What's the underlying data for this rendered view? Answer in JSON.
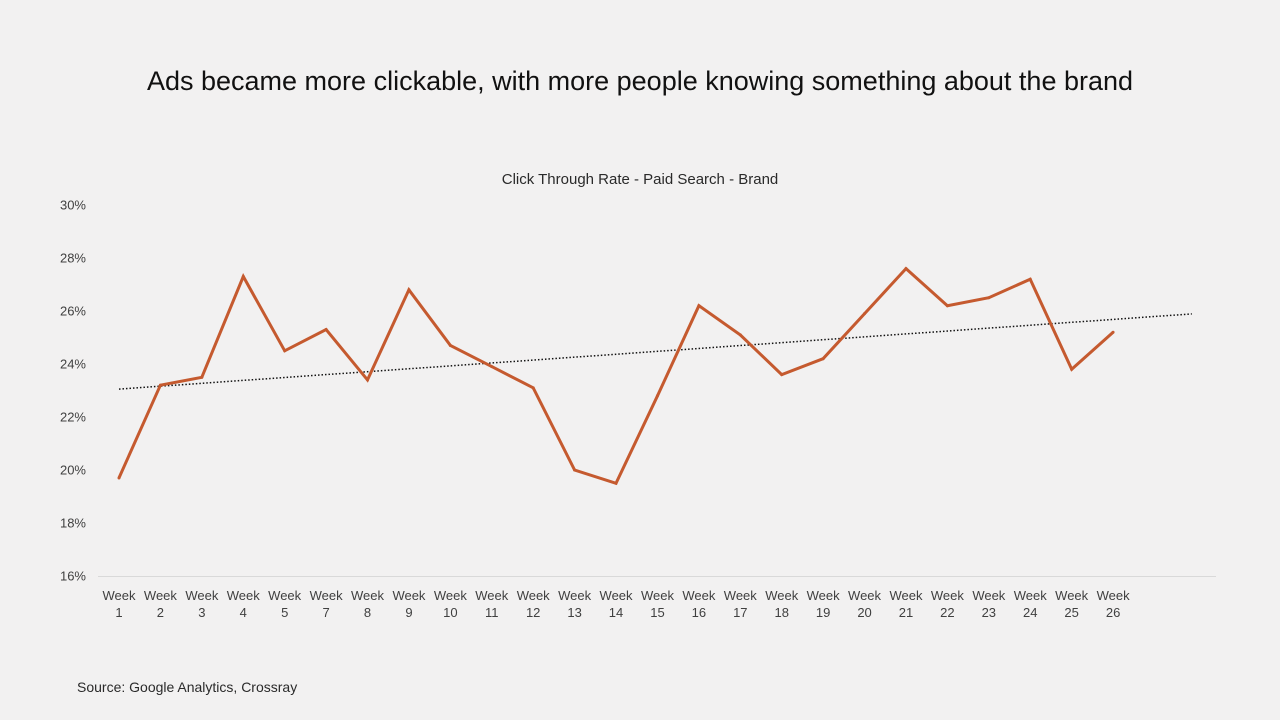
{
  "headline": "Ads became more clickable, with more people knowing something about the brand",
  "source": "Source: Google Analytics, Crossray",
  "colors": {
    "background": "#f2f1f1",
    "series_line": "#c55a2f",
    "trendline": "#111111",
    "axis": "#d9d9d9"
  },
  "chart_data": {
    "type": "line",
    "title": "Click Through Rate - Paid Search - Brand",
    "xlabel": "",
    "ylabel": "",
    "ylim": [
      0.16,
      0.3
    ],
    "y_ticks": [
      0.16,
      0.18,
      0.2,
      0.22,
      0.24,
      0.26,
      0.28,
      0.3
    ],
    "y_tick_labels": [
      "16%",
      "18%",
      "20%",
      "22%",
      "24%",
      "26%",
      "28%",
      "30%"
    ],
    "grid": false,
    "legend": "none",
    "categories": [
      [
        "Week",
        "1"
      ],
      [
        "Week",
        "2"
      ],
      [
        "Week",
        "3"
      ],
      [
        "Week",
        "4"
      ],
      [
        "Week",
        "5"
      ],
      [
        "Week",
        "7"
      ],
      [
        "Week",
        "8"
      ],
      [
        "Week",
        "9"
      ],
      [
        "Week",
        "10"
      ],
      [
        "Week",
        "11"
      ],
      [
        "Week",
        "12"
      ],
      [
        "Week",
        "13"
      ],
      [
        "Week",
        "14"
      ],
      [
        "Week",
        "15"
      ],
      [
        "Week",
        "16"
      ],
      [
        "Week",
        "17"
      ],
      [
        "Week",
        "18"
      ],
      [
        "Week",
        "19"
      ],
      [
        "Week",
        "20"
      ],
      [
        "Week",
        "21"
      ],
      [
        "Week",
        "22"
      ],
      [
        "Week",
        "23"
      ],
      [
        "Week",
        "24"
      ],
      [
        "Week",
        "25"
      ],
      [
        "Week",
        "26"
      ]
    ],
    "series": [
      {
        "values": [
          0.197,
          0.232,
          0.235,
          0.273,
          0.245,
          0.253,
          0.234,
          0.268,
          0.247,
          0.239,
          0.231,
          0.2,
          0.195,
          0.228,
          0.262,
          0.251,
          0.236,
          0.242,
          0.259,
          0.276,
          0.262,
          0.265,
          0.272,
          0.238,
          0.252
        ]
      }
    ],
    "trendline": {
      "type": "linear",
      "style": "dotted"
    }
  }
}
